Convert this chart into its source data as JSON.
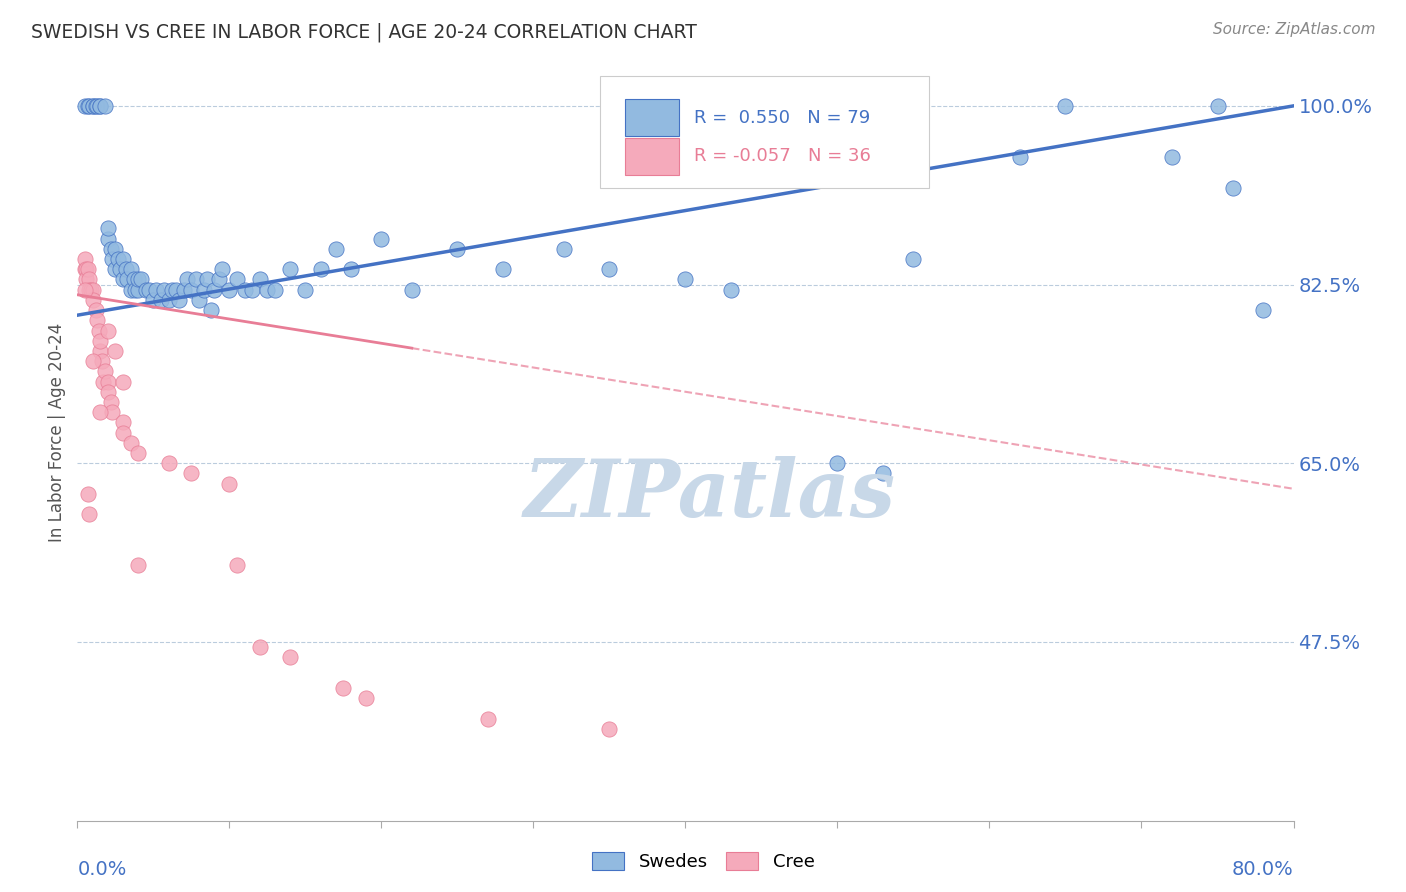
{
  "title": "SWEDISH VS CREE IN LABOR FORCE | AGE 20-24 CORRELATION CHART",
  "source": "Source: ZipAtlas.com",
  "ylabel": "In Labor Force | Age 20-24",
  "ytick_values": [
    1.0,
    0.825,
    0.65,
    0.475
  ],
  "xmin": 0.0,
  "xmax": 0.8,
  "ymin": 0.3,
  "ymax": 1.06,
  "r_swedish": 0.55,
  "n_swedish": 79,
  "r_cree": -0.057,
  "n_cree": 36,
  "color_swedish": "#92BAE0",
  "color_cree": "#F5AABB",
  "color_trendline_swedish": "#4472C4",
  "color_trendline_cree": "#E87D96",
  "color_axis_labels": "#4472C4",
  "watermark_text": "ZIPatlas",
  "watermark_color": "#C8D8E8",
  "swedish_x": [
    0.005,
    0.007,
    0.008,
    0.01,
    0.01,
    0.012,
    0.013,
    0.015,
    0.015,
    0.018,
    0.02,
    0.02,
    0.022,
    0.023,
    0.025,
    0.025,
    0.027,
    0.028,
    0.03,
    0.03,
    0.032,
    0.033,
    0.035,
    0.035,
    0.037,
    0.038,
    0.04,
    0.04,
    0.042,
    0.045,
    0.047,
    0.05,
    0.052,
    0.055,
    0.057,
    0.06,
    0.062,
    0.065,
    0.067,
    0.07,
    0.072,
    0.075,
    0.078,
    0.08,
    0.083,
    0.085,
    0.088,
    0.09,
    0.093,
    0.095,
    0.1,
    0.105,
    0.11,
    0.115,
    0.12,
    0.125,
    0.13,
    0.14,
    0.15,
    0.16,
    0.17,
    0.18,
    0.2,
    0.22,
    0.25,
    0.28,
    0.32,
    0.35,
    0.4,
    0.43,
    0.5,
    0.53,
    0.55,
    0.62,
    0.65,
    0.72,
    0.75,
    0.76,
    0.78
  ],
  "swedish_y": [
    1.0,
    1.0,
    1.0,
    1.0,
    1.0,
    1.0,
    1.0,
    1.0,
    1.0,
    1.0,
    0.87,
    0.88,
    0.86,
    0.85,
    0.84,
    0.86,
    0.85,
    0.84,
    0.83,
    0.85,
    0.84,
    0.83,
    0.82,
    0.84,
    0.83,
    0.82,
    0.82,
    0.83,
    0.83,
    0.82,
    0.82,
    0.81,
    0.82,
    0.81,
    0.82,
    0.81,
    0.82,
    0.82,
    0.81,
    0.82,
    0.83,
    0.82,
    0.83,
    0.81,
    0.82,
    0.83,
    0.8,
    0.82,
    0.83,
    0.84,
    0.82,
    0.83,
    0.82,
    0.82,
    0.83,
    0.82,
    0.82,
    0.84,
    0.82,
    0.84,
    0.86,
    0.84,
    0.87,
    0.82,
    0.86,
    0.84,
    0.86,
    0.84,
    0.83,
    0.82,
    0.65,
    0.64,
    0.85,
    0.95,
    1.0,
    0.95,
    1.0,
    0.92,
    0.8
  ],
  "cree_x": [
    0.005,
    0.005,
    0.006,
    0.006,
    0.007,
    0.008,
    0.008,
    0.009,
    0.01,
    0.01,
    0.012,
    0.013,
    0.014,
    0.015,
    0.015,
    0.016,
    0.017,
    0.018,
    0.02,
    0.02,
    0.022,
    0.023,
    0.03,
    0.03,
    0.035,
    0.04,
    0.06,
    0.075,
    0.1,
    0.105,
    0.12,
    0.14,
    0.175,
    0.19,
    0.27,
    0.35
  ],
  "cree_y": [
    0.84,
    0.85,
    0.84,
    0.83,
    0.84,
    0.83,
    0.82,
    0.82,
    0.82,
    0.81,
    0.8,
    0.79,
    0.78,
    0.76,
    0.77,
    0.75,
    0.73,
    0.74,
    0.73,
    0.72,
    0.71,
    0.7,
    0.69,
    0.68,
    0.67,
    0.66,
    0.65,
    0.64,
    0.63,
    0.55,
    0.47,
    0.46,
    0.43,
    0.42,
    0.4,
    0.39
  ],
  "cree_lowx_extra": [
    [
      0.005,
      0.82
    ],
    [
      0.007,
      0.62
    ],
    [
      0.008,
      0.6
    ],
    [
      0.01,
      0.75
    ],
    [
      0.015,
      0.7
    ],
    [
      0.02,
      0.78
    ],
    [
      0.025,
      0.76
    ],
    [
      0.03,
      0.73
    ],
    [
      0.04,
      0.55
    ]
  ]
}
